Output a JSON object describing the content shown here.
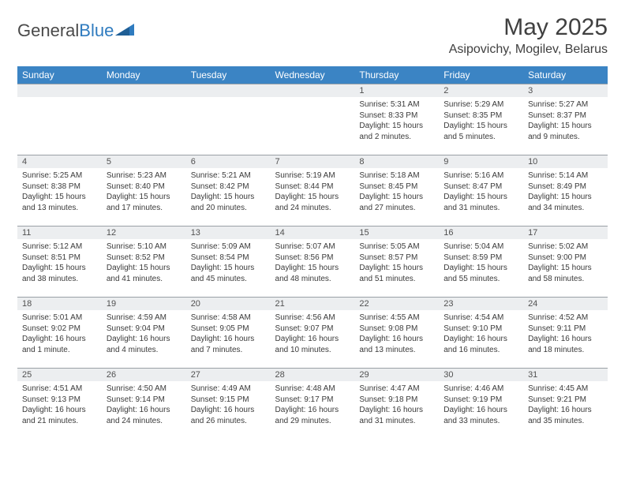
{
  "brand": {
    "part1": "General",
    "part2": "Blue"
  },
  "title": "May 2025",
  "location": "Asipovichy, Mogilev, Belarus",
  "colors": {
    "header_bg": "#3b84c4",
    "header_fg": "#ffffff",
    "daynum_bg": "#eceef0",
    "rule": "#9aa0a6",
    "text": "#3a3a3a",
    "brand_gray": "#4a4a4a",
    "brand_blue": "#2f7bbf"
  },
  "weekdays": [
    "Sunday",
    "Monday",
    "Tuesday",
    "Wednesday",
    "Thursday",
    "Friday",
    "Saturday"
  ],
  "weeks": [
    [
      null,
      null,
      null,
      null,
      {
        "n": "1",
        "sr": "5:31 AM",
        "ss": "8:33 PM",
        "dl": "15 hours and 2 minutes."
      },
      {
        "n": "2",
        "sr": "5:29 AM",
        "ss": "8:35 PM",
        "dl": "15 hours and 5 minutes."
      },
      {
        "n": "3",
        "sr": "5:27 AM",
        "ss": "8:37 PM",
        "dl": "15 hours and 9 minutes."
      }
    ],
    [
      {
        "n": "4",
        "sr": "5:25 AM",
        "ss": "8:38 PM",
        "dl": "15 hours and 13 minutes."
      },
      {
        "n": "5",
        "sr": "5:23 AM",
        "ss": "8:40 PM",
        "dl": "15 hours and 17 minutes."
      },
      {
        "n": "6",
        "sr": "5:21 AM",
        "ss": "8:42 PM",
        "dl": "15 hours and 20 minutes."
      },
      {
        "n": "7",
        "sr": "5:19 AM",
        "ss": "8:44 PM",
        "dl": "15 hours and 24 minutes."
      },
      {
        "n": "8",
        "sr": "5:18 AM",
        "ss": "8:45 PM",
        "dl": "15 hours and 27 minutes."
      },
      {
        "n": "9",
        "sr": "5:16 AM",
        "ss": "8:47 PM",
        "dl": "15 hours and 31 minutes."
      },
      {
        "n": "10",
        "sr": "5:14 AM",
        "ss": "8:49 PM",
        "dl": "15 hours and 34 minutes."
      }
    ],
    [
      {
        "n": "11",
        "sr": "5:12 AM",
        "ss": "8:51 PM",
        "dl": "15 hours and 38 minutes."
      },
      {
        "n": "12",
        "sr": "5:10 AM",
        "ss": "8:52 PM",
        "dl": "15 hours and 41 minutes."
      },
      {
        "n": "13",
        "sr": "5:09 AM",
        "ss": "8:54 PM",
        "dl": "15 hours and 45 minutes."
      },
      {
        "n": "14",
        "sr": "5:07 AM",
        "ss": "8:56 PM",
        "dl": "15 hours and 48 minutes."
      },
      {
        "n": "15",
        "sr": "5:05 AM",
        "ss": "8:57 PM",
        "dl": "15 hours and 51 minutes."
      },
      {
        "n": "16",
        "sr": "5:04 AM",
        "ss": "8:59 PM",
        "dl": "15 hours and 55 minutes."
      },
      {
        "n": "17",
        "sr": "5:02 AM",
        "ss": "9:00 PM",
        "dl": "15 hours and 58 minutes."
      }
    ],
    [
      {
        "n": "18",
        "sr": "5:01 AM",
        "ss": "9:02 PM",
        "dl": "16 hours and 1 minute."
      },
      {
        "n": "19",
        "sr": "4:59 AM",
        "ss": "9:04 PM",
        "dl": "16 hours and 4 minutes."
      },
      {
        "n": "20",
        "sr": "4:58 AM",
        "ss": "9:05 PM",
        "dl": "16 hours and 7 minutes."
      },
      {
        "n": "21",
        "sr": "4:56 AM",
        "ss": "9:07 PM",
        "dl": "16 hours and 10 minutes."
      },
      {
        "n": "22",
        "sr": "4:55 AM",
        "ss": "9:08 PM",
        "dl": "16 hours and 13 minutes."
      },
      {
        "n": "23",
        "sr": "4:54 AM",
        "ss": "9:10 PM",
        "dl": "16 hours and 16 minutes."
      },
      {
        "n": "24",
        "sr": "4:52 AM",
        "ss": "9:11 PM",
        "dl": "16 hours and 18 minutes."
      }
    ],
    [
      {
        "n": "25",
        "sr": "4:51 AM",
        "ss": "9:13 PM",
        "dl": "16 hours and 21 minutes."
      },
      {
        "n": "26",
        "sr": "4:50 AM",
        "ss": "9:14 PM",
        "dl": "16 hours and 24 minutes."
      },
      {
        "n": "27",
        "sr": "4:49 AM",
        "ss": "9:15 PM",
        "dl": "16 hours and 26 minutes."
      },
      {
        "n": "28",
        "sr": "4:48 AM",
        "ss": "9:17 PM",
        "dl": "16 hours and 29 minutes."
      },
      {
        "n": "29",
        "sr": "4:47 AM",
        "ss": "9:18 PM",
        "dl": "16 hours and 31 minutes."
      },
      {
        "n": "30",
        "sr": "4:46 AM",
        "ss": "9:19 PM",
        "dl": "16 hours and 33 minutes."
      },
      {
        "n": "31",
        "sr": "4:45 AM",
        "ss": "9:21 PM",
        "dl": "16 hours and 35 minutes."
      }
    ]
  ],
  "labels": {
    "sunrise": "Sunrise:",
    "sunset": "Sunset:",
    "daylight": "Daylight:"
  }
}
